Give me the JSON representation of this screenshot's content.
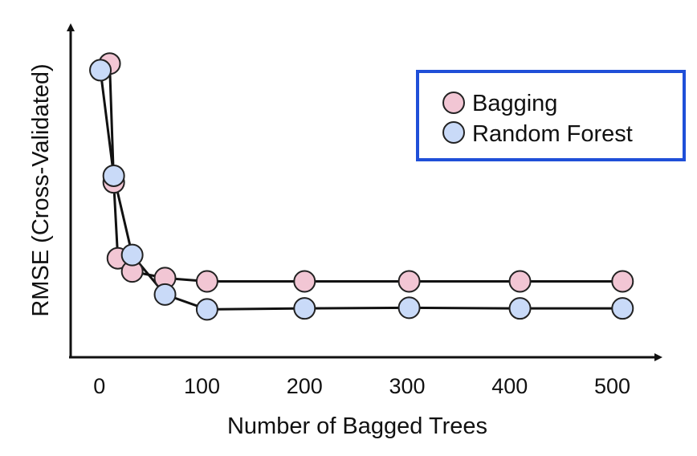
{
  "chart_data": {
    "type": "line",
    "title": "",
    "xlabel": "Number of Bagged Trees",
    "ylabel": "RMSE (Cross-Validated)",
    "xlim": [
      -28,
      545
    ],
    "ylim": [
      0,
      100
    ],
    "x_ticks": [
      0,
      100,
      200,
      300,
      400,
      500
    ],
    "x_tick_labels": [
      "0",
      "100",
      "200",
      "300",
      "400",
      "500"
    ],
    "y_ticks_shown": false,
    "grid": false,
    "legend": {
      "position": "top-right",
      "boxed": true
    },
    "series": [
      {
        "name": "Bagging",
        "color": "#f2c6d4",
        "x": [
          10,
          14,
          18,
          32,
          64,
          105,
          200,
          302,
          410,
          510
        ],
        "y": [
          89,
          53,
          30,
          26,
          24,
          23,
          23,
          23,
          23,
          23
        ]
      },
      {
        "name": "Random Forest",
        "color": "#c9daf8",
        "x": [
          1,
          14,
          32,
          64,
          105,
          200,
          302,
          410,
          510
        ],
        "y": [
          87,
          55,
          31,
          19,
          14.5,
          14.8,
          15,
          14.8,
          14.8
        ]
      }
    ],
    "colors": {
      "legend_border": "#1f4fd8",
      "axis": "#111111",
      "marker_edge": "#222222"
    }
  }
}
